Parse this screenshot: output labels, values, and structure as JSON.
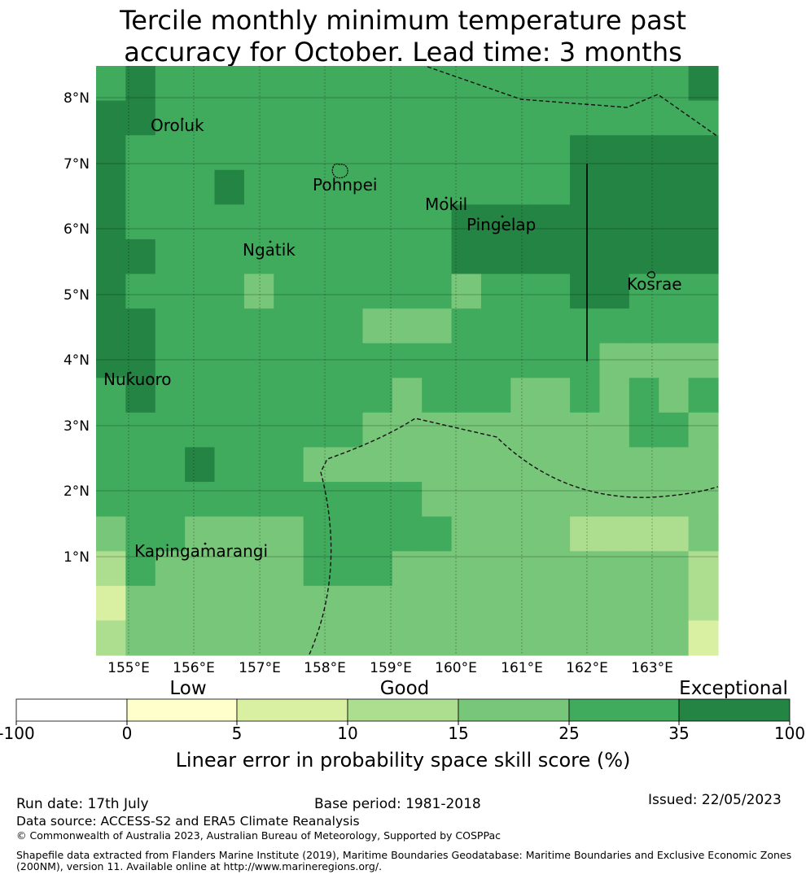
{
  "title_line1": "Tercile monthly minimum temperature past",
  "title_line2": "accuracy for October. Lead time: 3 months",
  "map": {
    "lon_labels": [
      "155°E",
      "156°E",
      "157°E",
      "158°E",
      "159°E",
      "160°E",
      "161°E",
      "162°E",
      "163°E"
    ],
    "lat_labels": [
      "8°N",
      "7°N",
      "6°N",
      "5°N",
      "4°N",
      "3°N",
      "2°N",
      "1°N"
    ],
    "places": [
      {
        "name": "Oroluk"
      },
      {
        "name": "Pohnpei"
      },
      {
        "name": "Mokil"
      },
      {
        "name": "Pingelap"
      },
      {
        "name": "Ngatik"
      },
      {
        "name": "Kosrae"
      },
      {
        "name": "Nukuoro"
      },
      {
        "name": "Kapingamarangi"
      }
    ],
    "grid_rows": [
      "GHGGGGGGGGGGGGGGGGGGH",
      "HHGGGGGGGGGGGGGGGGGGG",
      "HGGGGGGGGGGGGGGGHHHHH",
      "HGGGHGGGGGGGGGGGHHHHH",
      "HGGGGGGGGGGGHHHHHHHHH",
      "HHGGGGGGGGGGHHHHHHHHH",
      "HGGGGFGGGGGGFGGGHHGGG",
      "HHGGGGGGGFFFGGGGGGGGG",
      "HHGGGGGGGGGGGGGGGFFFF",
      "GHGGGGGGGGFGGGFFGFGFG",
      "GGGGGGGGGFFFFFFFFFGGF",
      "GGGHGGGFFFFFFFFFFFFFF",
      "GGGGGGGGGGGFFFFFFFFFF",
      "FGGFFFFGGGGGFFFFEEEEF",
      "EGFFFFFGGGFFFFFFFFFFE",
      "DFFFFFFFFFFFFFFFFFFFE",
      "EFFFFFFFFFFFFFFFFFFFD"
    ]
  },
  "colorbar": {
    "category_labels": [
      "Low",
      "Good",
      "Exceptional"
    ],
    "ticks": [
      "-100",
      "0",
      "5",
      "10",
      "15",
      "25",
      "35",
      "100"
    ],
    "colors": [
      "#ffffff",
      "#ffffcc",
      "#d9f0a3",
      "#addd8e",
      "#78c679",
      "#41ab5d",
      "#238443"
    ],
    "label": "Linear error in probability space skill score (%)"
  },
  "footer": {
    "run_date": "Run date: 17th July",
    "base_period": "Base period: 1981-2018",
    "issued": "Issued: 22/05/2023",
    "data_source": "Data source: ACCESS-S2 and ERA5 Climate Reanalysis",
    "copyright": "© Commonwealth of Australia 2023, Australian Bureau of Meteorology, Supported by COSPPac",
    "shapefile_line1": "Shapefile data extracted from Flanders Marine Institute (2019), Maritime Boundaries Geodatabase: Maritime Boundaries and Exclusive Economic Zones",
    "shapefile_line2": "(200NM), version 11. Available online at http://www.marineregions.org/."
  }
}
